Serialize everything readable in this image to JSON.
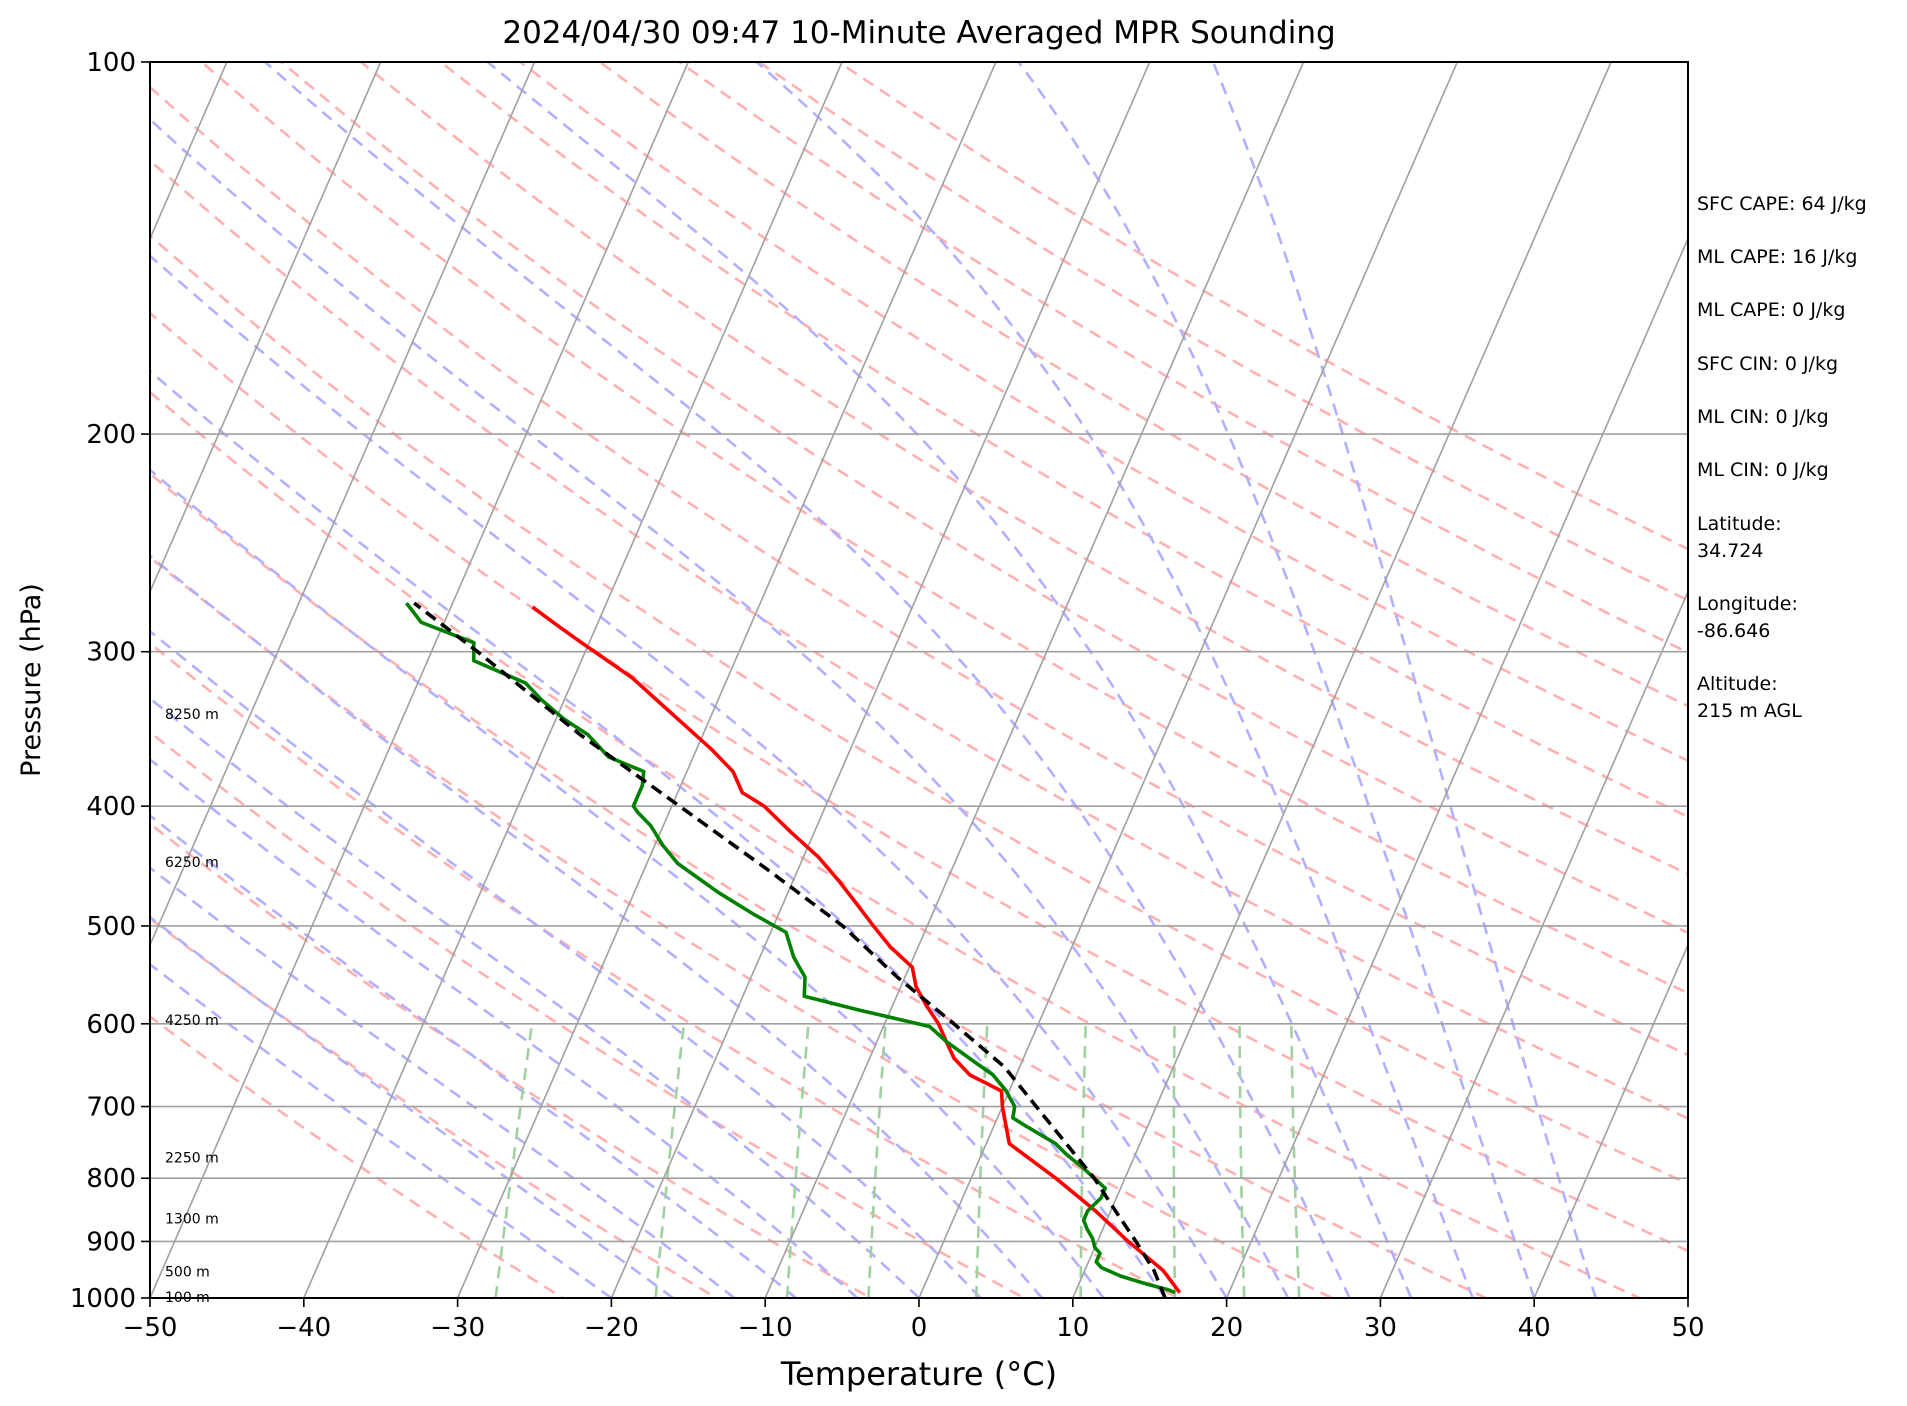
{
  "chart_data": {
    "type": "line",
    "title": "2024/04/30 09:47 10-Minute Averaged MPR Sounding",
    "xlabel": "Temperature (°C)",
    "ylabel": "Pressure (hPa)",
    "xlim": [
      -50,
      50
    ],
    "ylim": [
      1000,
      100
    ],
    "y_scale": "log",
    "x_ticks": [
      -50,
      -40,
      -30,
      -20,
      -10,
      0,
      10,
      20,
      30,
      40,
      50
    ],
    "x_tick_labels": [
      "−50",
      "−40",
      "−30",
      "−20",
      "−10",
      "0",
      "10",
      "20",
      "30",
      "40",
      "50"
    ],
    "y_ticks": [
      1000,
      900,
      800,
      700,
      600,
      500,
      400,
      300,
      200,
      100
    ],
    "y_tick_labels": [
      "1000",
      "900",
      "800",
      "700",
      "600",
      "500",
      "400",
      "300",
      "200",
      "100"
    ],
    "grid": true,
    "skew": "skew-T log-p",
    "height_labels": [
      {
        "p": 998,
        "text": "100 m"
      },
      {
        "p": 952,
        "text": "500 m"
      },
      {
        "p": 862,
        "text": "1300 m"
      },
      {
        "p": 770,
        "text": "2250 m"
      },
      {
        "p": 596,
        "text": "4250 m"
      },
      {
        "p": 444,
        "text": "6250 m"
      },
      {
        "p": 337,
        "text": "8250 m"
      }
    ],
    "colors": {
      "temperature": "#ff0000",
      "dewpoint": "#008000",
      "parcel": "#000000",
      "isotherms": "#a0a0a0",
      "dry_adiabats": "#ffb0b0",
      "moist_adiabats": "#b0b0ff",
      "mixing_ratio": "#a0d0a0"
    },
    "series": [
      {
        "type": "line",
        "style": "solid",
        "color": "#ff0000",
        "points": [
          {
            "p": 990,
            "t": 16.8
          },
          {
            "p": 950,
            "t": 15.1
          },
          {
            "p": 900,
            "t": 12.0
          },
          {
            "p": 850,
            "t": 9.0
          },
          {
            "p": 800,
            "t": 5.5
          },
          {
            "p": 750,
            "t": 1.5
          },
          {
            "p": 700,
            "t": 0.0
          },
          {
            "p": 680,
            "t": -0.5
          },
          {
            "p": 660,
            "t": -3.0
          },
          {
            "p": 640,
            "t": -4.5
          },
          {
            "p": 620,
            "t": -5.5
          },
          {
            "p": 600,
            "t": -6.5
          },
          {
            "p": 580,
            "t": -7.8
          },
          {
            "p": 560,
            "t": -9.0
          },
          {
            "p": 540,
            "t": -9.8
          },
          {
            "p": 520,
            "t": -11.8
          },
          {
            "p": 500,
            "t": -13.5
          },
          {
            "p": 480,
            "t": -15.2
          },
          {
            "p": 460,
            "t": -17.0
          },
          {
            "p": 440,
            "t": -19.0
          },
          {
            "p": 420,
            "t": -21.5
          },
          {
            "p": 400,
            "t": -24.0
          },
          {
            "p": 390,
            "t": -25.8
          },
          {
            "p": 375,
            "t": -27.0
          },
          {
            "p": 360,
            "t": -29.0
          },
          {
            "p": 345,
            "t": -31.3
          },
          {
            "p": 330,
            "t": -33.7
          },
          {
            "p": 315,
            "t": -36.2
          },
          {
            "p": 305,
            "t": -38.3
          },
          {
            "p": 295,
            "t": -40.5
          },
          {
            "p": 285,
            "t": -42.7
          },
          {
            "p": 276,
            "t": -44.7
          }
        ]
      },
      {
        "type": "line",
        "style": "solid",
        "color": "#008000",
        "points": [
          {
            "p": 990,
            "t": 16.5
          },
          {
            "p": 985,
            "t": 16.0
          },
          {
            "p": 975,
            "t": 14.5
          },
          {
            "p": 960,
            "t": 12.5
          },
          {
            "p": 945,
            "t": 11.0
          },
          {
            "p": 935,
            "t": 10.5
          },
          {
            "p": 920,
            "t": 10.5
          },
          {
            "p": 910,
            "t": 10.0
          },
          {
            "p": 895,
            "t": 9.6
          },
          {
            "p": 880,
            "t": 9.0
          },
          {
            "p": 865,
            "t": 8.5
          },
          {
            "p": 850,
            "t": 8.5
          },
          {
            "p": 830,
            "t": 9.0
          },
          {
            "p": 815,
            "t": 9.0
          },
          {
            "p": 800,
            "t": 8.0
          },
          {
            "p": 785,
            "t": 7.0
          },
          {
            "p": 765,
            "t": 5.5
          },
          {
            "p": 750,
            "t": 4.5
          },
          {
            "p": 725,
            "t": 2.0
          },
          {
            "p": 715,
            "t": 1.0
          },
          {
            "p": 700,
            "t": 0.8
          },
          {
            "p": 680,
            "t": -0.2
          },
          {
            "p": 660,
            "t": -1.5
          },
          {
            "p": 640,
            "t": -3.5
          },
          {
            "p": 620,
            "t": -5.5
          },
          {
            "p": 603,
            "t": -7.0
          },
          {
            "p": 585,
            "t": -12.0
          },
          {
            "p": 570,
            "t": -16.0
          },
          {
            "p": 550,
            "t": -16.5
          },
          {
            "p": 530,
            "t": -17.8
          },
          {
            "p": 506,
            "t": -19.0
          },
          {
            "p": 490,
            "t": -21.5
          },
          {
            "p": 470,
            "t": -24.5
          },
          {
            "p": 445,
            "t": -28.0
          },
          {
            "p": 430,
            "t": -29.5
          },
          {
            "p": 415,
            "t": -30.8
          },
          {
            "p": 405,
            "t": -32.0
          },
          {
            "p": 400,
            "t": -32.5
          },
          {
            "p": 385,
            "t": -32.5
          },
          {
            "p": 375,
            "t": -32.8
          },
          {
            "p": 365,
            "t": -35.5
          },
          {
            "p": 350,
            "t": -37.5
          },
          {
            "p": 340,
            "t": -39.5
          },
          {
            "p": 328,
            "t": -41.5
          },
          {
            "p": 318,
            "t": -43.0
          },
          {
            "p": 305,
            "t": -47.0
          },
          {
            "p": 295,
            "t": -47.5
          },
          {
            "p": 284,
            "t": -51.5
          },
          {
            "p": 274,
            "t": -53.0
          }
        ]
      },
      {
        "type": "line",
        "style": "dashed",
        "color": "#000000",
        "points": [
          {
            "p": 1000,
            "t": 16.0
          },
          {
            "p": 950,
            "t": 14.5
          },
          {
            "p": 900,
            "t": 12.5
          },
          {
            "p": 850,
            "t": 10.3
          },
          {
            "p": 800,
            "t": 8.0
          },
          {
            "p": 750,
            "t": 5.2
          },
          {
            "p": 700,
            "t": 2.2
          },
          {
            "p": 650,
            "t": -1.0
          },
          {
            "p": 600,
            "t": -5.5
          },
          {
            "p": 550,
            "t": -10.5
          },
          {
            "p": 500,
            "t": -15.5
          },
          {
            "p": 450,
            "t": -22.0
          },
          {
            "p": 400,
            "t": -29.5
          },
          {
            "p": 350,
            "t": -38.0
          },
          {
            "p": 300,
            "t": -47.0
          },
          {
            "p": 274,
            "t": -52.5
          }
        ]
      }
    ]
  },
  "info_panel": {
    "items": [
      "SFC CAPE: 64 J/kg",
      "ML CAPE: 16 J/kg",
      "ML CAPE: 0 J/kg",
      "SFC CIN: 0 J/kg",
      "ML CIN: 0 J/kg",
      "ML CIN: 0 J/kg"
    ],
    "latitude_label": "Latitude:",
    "latitude_value": "34.724",
    "longitude_label": "Longitude:",
    "longitude_value": "-86.646",
    "altitude_label": "Altitude:",
    "altitude_value": "215 m AGL"
  }
}
